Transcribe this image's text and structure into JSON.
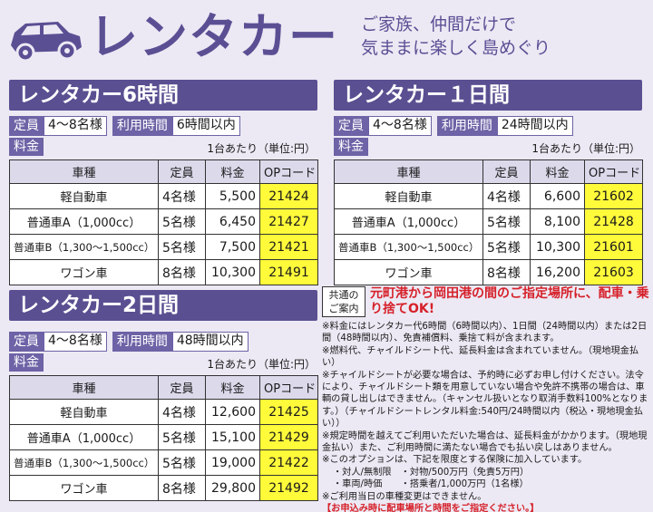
{
  "header": {
    "title": "レンタカー",
    "tagline": [
      "ご家族、仲間だけで",
      "気ままに楽しく島めぐり"
    ]
  },
  "common": {
    "capacity_label": "定員",
    "capacity_value": "4〜8名様",
    "time_label": "利用時間",
    "fee_label": "料金",
    "unit_note": "1台あたり（単位:円）",
    "columns": [
      "車種",
      "定員",
      "料金",
      "OPコード"
    ]
  },
  "plans": [
    {
      "title": "レンタカー6時間",
      "time_value": "6時間以内",
      "rows": [
        {
          "type": "軽自動車",
          "cap": "4名様",
          "price": "5,500",
          "code": "21424"
        },
        {
          "type": "普通車A（1,000cc）",
          "cap": "5名様",
          "price": "6,450",
          "code": "21427"
        },
        {
          "type": "普通車B（1,300〜1,500cc）",
          "cap": "5名様",
          "price": "7,500",
          "code": "21421"
        },
        {
          "type": "ワゴン車",
          "cap": "8名様",
          "price": "10,300",
          "code": "21491"
        }
      ]
    },
    {
      "title": "レンタカー１日間",
      "time_value": "24時間以内",
      "rows": [
        {
          "type": "軽自動車",
          "cap": "4名様",
          "price": "6,600",
          "code": "21602"
        },
        {
          "type": "普通車A（1,000cc）",
          "cap": "5名様",
          "price": "8,100",
          "code": "21428"
        },
        {
          "type": "普通車B（1,300〜1,500cc）",
          "cap": "5名様",
          "price": "10,300",
          "code": "21601"
        },
        {
          "type": "ワゴン車",
          "cap": "8名様",
          "price": "16,200",
          "code": "21603"
        }
      ]
    },
    {
      "title": "レンタカー2日間",
      "time_value": "48時間以内",
      "rows": [
        {
          "type": "軽自動車",
          "cap": "4名様",
          "price": "12,600",
          "code": "21425"
        },
        {
          "type": "普通車A（1,000cc）",
          "cap": "5名様",
          "price": "15,100",
          "code": "21429"
        },
        {
          "type": "普通車B（1,300〜1,500cc）",
          "cap": "5名様",
          "price": "19,000",
          "code": "21422"
        },
        {
          "type": "ワゴン車",
          "cap": "8名様",
          "price": "29,800",
          "code": "21492"
        }
      ]
    }
  ],
  "notice": {
    "box_lines": [
      "共通の",
      "ご案内"
    ],
    "headline": "元町港から岡田港の間のご指定場所に、配車・乗り捨てOK!"
  },
  "notes": [
    "※料金にはレンタカー代6時間（6時間以内）、1日間（24時間以内）または2日間（48時間以内）、免責補償料、乗捨て料が含まれます。",
    "※燃料代、チャイルドシート代、延長料金は含まれていません。（現地現金払い）",
    "※チャイルドシートが必要な場合は、予約時に必ずお申し付けください。法令により、チャイルドシート類を用意していない場合や免許不携帯の場合は、車輌の貸し出しはできません。（キャンセル扱いとなり取消手数料100%となります。）（チャイルドシートレンタル料金:540円/24時間以内（税込・現地現金払い））",
    "※規定時間を越えてご利用いただいた場合は、延長料金がかかります。（現地現金払い）また、ご利用時間に満たない場合でも払い戻しはありません。",
    "※このオプションは、下記を限度とする保険に加入しています。",
    "・対人/無制限　・対物/500万円（免責5万円）",
    "・車両/時価　　・搭乗者/1,000万円（1名様）",
    "※ご利用当日の車種変更はできません。",
    "【お申込み時に配車場所と時間をご指定ください。】"
  ]
}
